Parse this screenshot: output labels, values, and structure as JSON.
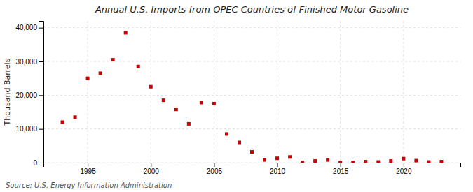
{
  "chart_data": {
    "type": "scatter",
    "title": "Annual U.S. Imports from OPEC Countries of Finished Motor Gasoline",
    "ylabel": "Thousand Barrels",
    "source": "Source: U.S. Energy Information Administration",
    "color": "#cc0000",
    "marker": "square",
    "grid": true,
    "x": [
      1993,
      1994,
      1995,
      1996,
      1997,
      1998,
      1999,
      2000,
      2001,
      2002,
      2003,
      2004,
      2005,
      2006,
      2007,
      2008,
      2009,
      2010,
      2011,
      2012,
      2013,
      2014,
      2015,
      2016,
      2017,
      2018,
      2019,
      2020,
      2021,
      2022,
      2023
    ],
    "values": [
      12000,
      13500,
      25000,
      26500,
      30500,
      38500,
      28500,
      22500,
      18500,
      15800,
      11500,
      17800,
      17500,
      8500,
      6000,
      3200,
      800,
      1300,
      1700,
      100,
      500,
      800,
      100,
      100,
      300,
      200,
      500,
      1200,
      600,
      200,
      300
    ],
    "xlim": [
      1991.5,
      2024.5
    ],
    "xticks": [
      1995,
      2000,
      2005,
      2010,
      2015,
      2020
    ],
    "ylim": [
      0,
      42000
    ],
    "yticks": [
      0,
      {
        "value": 10000,
        "label": "10,000"
      },
      {
        "value": 20000,
        "label": "20,000"
      },
      {
        "value": 30000,
        "label": "30,000"
      },
      {
        "value": 40000,
        "label": "40,000"
      }
    ]
  }
}
